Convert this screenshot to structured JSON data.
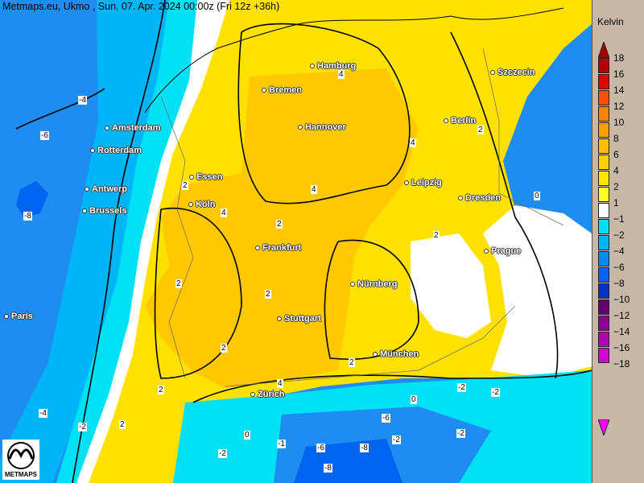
{
  "title": "Metmaps.eu, Ukmo , Sun, 07. Apr. 2024 00:00z (Fri 12z +36h)",
  "logo_text": "METMAPS",
  "legend": {
    "unit": "Kelvin",
    "ticks": [
      "18",
      "16",
      "14",
      "12",
      "10",
      "8",
      "6",
      "4",
      "2",
      "1",
      "−1",
      "−2",
      "−4",
      "−6",
      "−8",
      "−10",
      "−12",
      "−14",
      "−16",
      "−18"
    ],
    "top_arrow_color": "#a00000",
    "bottom_arrow_color": "#ff00ff",
    "colors": [
      "#b40000",
      "#e60000",
      "#ff5000",
      "#ff8200",
      "#ffa000",
      "#ffbe00",
      "#ffd200",
      "#ffe600",
      "#ffff28",
      "#ffffff",
      "#00e1f5",
      "#00b4f8",
      "#008cf5",
      "#0064f0",
      "#0032c8",
      "#640070",
      "#8c0096",
      "#b400b4",
      "#d700d7"
    ]
  },
  "map_colors": {
    "blue_dark": "#0064f0",
    "blue": "#1e8cf0",
    "blue_light": "#00b4f8",
    "cyan": "#00e1f5",
    "white": "#ffffff",
    "yellow": "#ffe100",
    "orange": "#ffc800"
  },
  "cities": [
    {
      "name": "Hamburg"
    },
    {
      "name": "Bremen"
    },
    {
      "name": "Szczecin"
    },
    {
      "name": "Amsterdam"
    },
    {
      "name": "Hannover"
    },
    {
      "name": "Berlin"
    },
    {
      "name": "Rotterdam"
    },
    {
      "name": "Essen"
    },
    {
      "name": "Leipzig"
    },
    {
      "name": "Antwerp"
    },
    {
      "name": "Dresden"
    },
    {
      "name": "Köln"
    },
    {
      "name": "Brussels"
    },
    {
      "name": "Frankfurt"
    },
    {
      "name": "Prague"
    },
    {
      "name": "Nürnberg"
    },
    {
      "name": "Paris"
    },
    {
      "name": "Stuttgart"
    },
    {
      "name": "München"
    },
    {
      "name": "Zürich"
    }
  ],
  "contour_labels": [
    "-4",
    "-6",
    "-8",
    "-4",
    "-2",
    "2",
    "4",
    "2",
    "2",
    "2",
    "2",
    "2",
    "2",
    "4",
    "4",
    "2",
    "4",
    "2",
    "0",
    "2",
    "4",
    "-2",
    "-2",
    "0",
    "-6",
    "-2",
    "-8",
    "-8",
    "-6",
    "-2",
    "-1",
    "0",
    "-2"
  ]
}
